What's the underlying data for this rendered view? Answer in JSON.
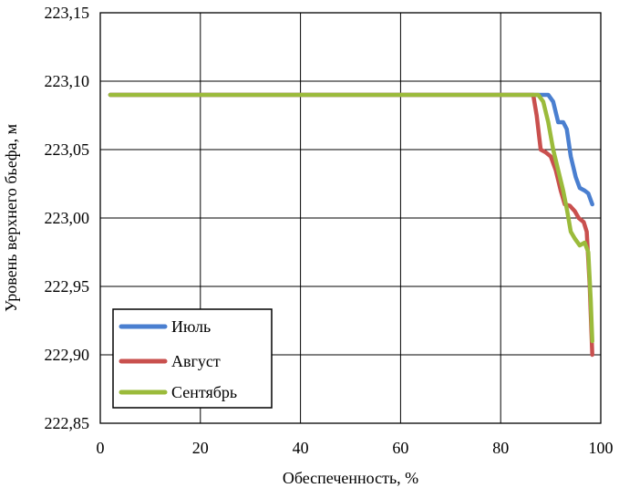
{
  "chart_data": {
    "type": "line",
    "title": "",
    "xlabel": "Обеспеченность, %",
    "ylabel": "Уровень верхнего бьефа, м",
    "xlim": [
      0,
      100
    ],
    "ylim": [
      222.85,
      223.15
    ],
    "x_ticks": [
      0,
      20,
      40,
      60,
      80,
      100
    ],
    "x_tick_labels": [
      "0",
      "20",
      "40",
      "60",
      "80",
      "100"
    ],
    "y_ticks": [
      222.85,
      222.9,
      222.95,
      223.0,
      223.05,
      223.1,
      223.15
    ],
    "y_tick_labels": [
      "222,85",
      "222,90",
      "222,95",
      "223,00",
      "223,05",
      "223,10",
      "223,15"
    ],
    "grid": true,
    "legend_position": "bottom-left",
    "series": [
      {
        "name": "Июль",
        "color": "#4a7fd0",
        "points": [
          [
            2,
            223.09
          ],
          [
            86,
            223.09
          ],
          [
            88,
            223.09
          ],
          [
            89.5,
            223.09
          ],
          [
            90.5,
            223.085
          ],
          [
            91.5,
            223.07
          ],
          [
            92.5,
            223.07
          ],
          [
            93.2,
            223.065
          ],
          [
            94,
            223.045
          ],
          [
            95,
            223.03
          ],
          [
            95.8,
            223.022
          ],
          [
            96.8,
            223.02
          ],
          [
            97.5,
            223.018
          ],
          [
            98.3,
            223.01
          ]
        ]
      },
      {
        "name": "Август",
        "color": "#c9504e",
        "points": [
          [
            2,
            223.09
          ],
          [
            85.5,
            223.09
          ],
          [
            86.5,
            223.09
          ],
          [
            87.2,
            223.075
          ],
          [
            88,
            223.05
          ],
          [
            89,
            223.048
          ],
          [
            90,
            223.045
          ],
          [
            91,
            223.035
          ],
          [
            92,
            223.02
          ],
          [
            92.8,
            223.01
          ],
          [
            93.8,
            223.009
          ],
          [
            94.8,
            223.005
          ],
          [
            95.6,
            223.0
          ],
          [
            96.6,
            222.997
          ],
          [
            97.2,
            222.99
          ],
          [
            97.8,
            222.95
          ],
          [
            98.3,
            222.9
          ]
        ]
      },
      {
        "name": "Сентябрь",
        "color": "#9bbb3b",
        "points": [
          [
            2,
            223.09
          ],
          [
            86,
            223.09
          ],
          [
            87.5,
            223.09
          ],
          [
            88.5,
            223.085
          ],
          [
            89.5,
            223.07
          ],
          [
            90.5,
            223.05
          ],
          [
            91.5,
            223.035
          ],
          [
            92.5,
            223.02
          ],
          [
            93.3,
            223.005
          ],
          [
            94,
            222.99
          ],
          [
            94.8,
            222.985
          ],
          [
            95.8,
            222.98
          ],
          [
            96.8,
            222.982
          ],
          [
            97.5,
            222.975
          ],
          [
            98,
            222.94
          ],
          [
            98.3,
            222.91
          ]
        ]
      }
    ]
  }
}
